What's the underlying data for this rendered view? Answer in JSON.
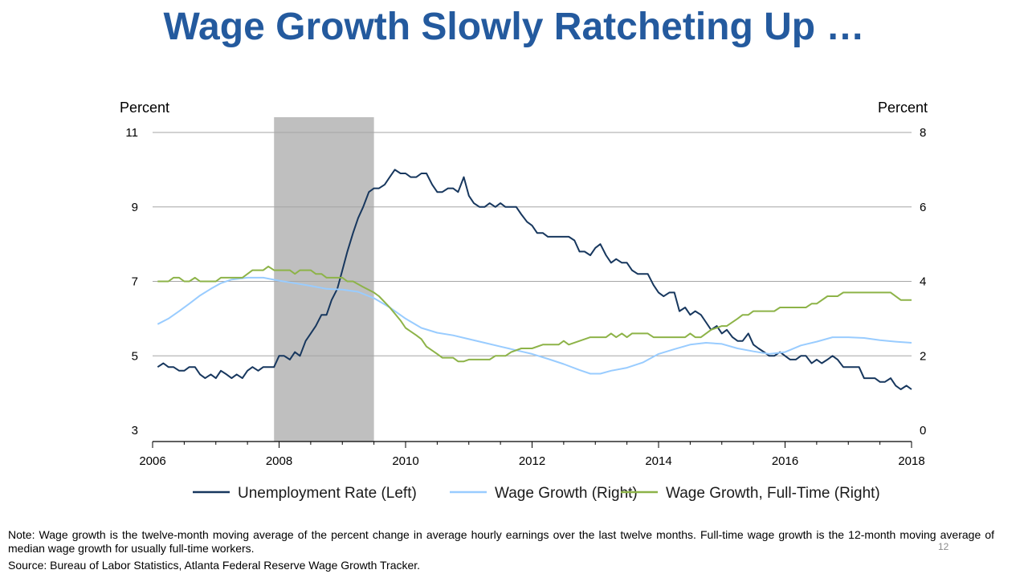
{
  "slide": {
    "title": "Wage Growth Slowly Ratcheting Up …",
    "note": "Note: Wage growth is the twelve-month moving average of the percent change in average hourly earnings over the last twelve months. Full-time wage growth is the 12-month moving average of median wage growth for usually full-time workers.",
    "source": "Source: Bureau of Labor Statistics, Atlanta Federal Reserve Wage Growth Tracker.",
    "page_number": "12"
  },
  "chart_data": {
    "type": "line",
    "title": "",
    "left_axis_label": "Percent",
    "right_axis_label": "Percent",
    "xlim": [
      2006,
      2018
    ],
    "left_ylim": [
      3,
      11
    ],
    "right_ylim": [
      0,
      8
    ],
    "x_ticks": [
      "2006",
      "2008",
      "2010",
      "2012",
      "2014",
      "2016",
      "2018"
    ],
    "left_ticks": [
      "11",
      "9",
      "7",
      "5",
      "3"
    ],
    "right_ticks": [
      "8",
      "6",
      "4",
      "2",
      "0"
    ],
    "grid": true,
    "legend_position": "bottom",
    "recession_band": [
      2007.92,
      2009.5
    ],
    "recession_color": "#bfbfbf",
    "series": [
      {
        "name": "Unemployment Rate (Left)",
        "axis": "left",
        "color": "#17375e",
        "points": [
          [
            2006.08,
            4.7
          ],
          [
            2006.17,
            4.8
          ],
          [
            2006.25,
            4.7
          ],
          [
            2006.33,
            4.7
          ],
          [
            2006.42,
            4.6
          ],
          [
            2006.5,
            4.6
          ],
          [
            2006.58,
            4.7
          ],
          [
            2006.67,
            4.7
          ],
          [
            2006.75,
            4.5
          ],
          [
            2006.83,
            4.4
          ],
          [
            2006.92,
            4.5
          ],
          [
            2007.0,
            4.4
          ],
          [
            2007.08,
            4.6
          ],
          [
            2007.17,
            4.5
          ],
          [
            2007.25,
            4.4
          ],
          [
            2007.33,
            4.5
          ],
          [
            2007.42,
            4.4
          ],
          [
            2007.5,
            4.6
          ],
          [
            2007.58,
            4.7
          ],
          [
            2007.67,
            4.6
          ],
          [
            2007.75,
            4.7
          ],
          [
            2007.83,
            4.7
          ],
          [
            2007.92,
            4.7
          ],
          [
            2008.0,
            5.0
          ],
          [
            2008.08,
            5.0
          ],
          [
            2008.17,
            4.9
          ],
          [
            2008.25,
            5.1
          ],
          [
            2008.33,
            5.0
          ],
          [
            2008.42,
            5.4
          ],
          [
            2008.5,
            5.6
          ],
          [
            2008.58,
            5.8
          ],
          [
            2008.67,
            6.1
          ],
          [
            2008.75,
            6.1
          ],
          [
            2008.83,
            6.5
          ],
          [
            2008.92,
            6.8
          ],
          [
            2009.0,
            7.3
          ],
          [
            2009.08,
            7.8
          ],
          [
            2009.17,
            8.3
          ],
          [
            2009.25,
            8.7
          ],
          [
            2009.33,
            9.0
          ],
          [
            2009.42,
            9.4
          ],
          [
            2009.5,
            9.5
          ],
          [
            2009.58,
            9.5
          ],
          [
            2009.67,
            9.6
          ],
          [
            2009.75,
            9.8
          ],
          [
            2009.83,
            10.0
          ],
          [
            2009.92,
            9.9
          ],
          [
            2010.0,
            9.9
          ],
          [
            2010.08,
            9.8
          ],
          [
            2010.17,
            9.8
          ],
          [
            2010.25,
            9.9
          ],
          [
            2010.33,
            9.9
          ],
          [
            2010.42,
            9.6
          ],
          [
            2010.5,
            9.4
          ],
          [
            2010.58,
            9.4
          ],
          [
            2010.67,
            9.5
          ],
          [
            2010.75,
            9.5
          ],
          [
            2010.83,
            9.4
          ],
          [
            2010.92,
            9.8
          ],
          [
            2011.0,
            9.3
          ],
          [
            2011.08,
            9.1
          ],
          [
            2011.17,
            9.0
          ],
          [
            2011.25,
            9.0
          ],
          [
            2011.33,
            9.1
          ],
          [
            2011.42,
            9.0
          ],
          [
            2011.5,
            9.1
          ],
          [
            2011.58,
            9.0
          ],
          [
            2011.67,
            9.0
          ],
          [
            2011.75,
            9.0
          ],
          [
            2011.83,
            8.8
          ],
          [
            2011.92,
            8.6
          ],
          [
            2012.0,
            8.5
          ],
          [
            2012.08,
            8.3
          ],
          [
            2012.17,
            8.3
          ],
          [
            2012.25,
            8.2
          ],
          [
            2012.33,
            8.2
          ],
          [
            2012.42,
            8.2
          ],
          [
            2012.5,
            8.2
          ],
          [
            2012.58,
            8.2
          ],
          [
            2012.67,
            8.1
          ],
          [
            2012.75,
            7.8
          ],
          [
            2012.83,
            7.8
          ],
          [
            2012.92,
            7.7
          ],
          [
            2013.0,
            7.9
          ],
          [
            2013.08,
            8.0
          ],
          [
            2013.17,
            7.7
          ],
          [
            2013.25,
            7.5
          ],
          [
            2013.33,
            7.6
          ],
          [
            2013.42,
            7.5
          ],
          [
            2013.5,
            7.5
          ],
          [
            2013.58,
            7.3
          ],
          [
            2013.67,
            7.2
          ],
          [
            2013.75,
            7.2
          ],
          [
            2013.83,
            7.2
          ],
          [
            2013.92,
            6.9
          ],
          [
            2014.0,
            6.7
          ],
          [
            2014.08,
            6.6
          ],
          [
            2014.17,
            6.7
          ],
          [
            2014.25,
            6.7
          ],
          [
            2014.33,
            6.2
          ],
          [
            2014.42,
            6.3
          ],
          [
            2014.5,
            6.1
          ],
          [
            2014.58,
            6.2
          ],
          [
            2014.67,
            6.1
          ],
          [
            2014.75,
            5.9
          ],
          [
            2014.83,
            5.7
          ],
          [
            2014.92,
            5.8
          ],
          [
            2015.0,
            5.6
          ],
          [
            2015.08,
            5.7
          ],
          [
            2015.17,
            5.5
          ],
          [
            2015.25,
            5.4
          ],
          [
            2015.33,
            5.4
          ],
          [
            2015.42,
            5.6
          ],
          [
            2015.5,
            5.3
          ],
          [
            2015.58,
            5.2
          ],
          [
            2015.67,
            5.1
          ],
          [
            2015.75,
            5.0
          ],
          [
            2015.83,
            5.0
          ],
          [
            2015.92,
            5.1
          ],
          [
            2016.0,
            5.0
          ],
          [
            2016.08,
            4.9
          ],
          [
            2016.17,
            4.9
          ],
          [
            2016.25,
            5.0
          ],
          [
            2016.33,
            5.0
          ],
          [
            2016.42,
            4.8
          ],
          [
            2016.5,
            4.9
          ],
          [
            2016.58,
            4.8
          ],
          [
            2016.67,
            4.9
          ],
          [
            2016.75,
            5.0
          ],
          [
            2016.83,
            4.9
          ],
          [
            2016.92,
            4.7
          ],
          [
            2017.0,
            4.7
          ],
          [
            2017.08,
            4.7
          ],
          [
            2017.17,
            4.7
          ],
          [
            2017.25,
            4.4
          ],
          [
            2017.33,
            4.4
          ],
          [
            2017.42,
            4.4
          ],
          [
            2017.5,
            4.3
          ],
          [
            2017.58,
            4.3
          ],
          [
            2017.67,
            4.4
          ],
          [
            2017.75,
            4.2
          ],
          [
            2017.83,
            4.1
          ],
          [
            2017.92,
            4.2
          ],
          [
            2018.0,
            4.1
          ]
        ]
      },
      {
        "name": "Wage Growth (Right)",
        "axis": "right",
        "color": "#99ccff",
        "points": [
          [
            2006.08,
            2.85
          ],
          [
            2006.25,
            3.0
          ],
          [
            2006.42,
            3.2
          ],
          [
            2006.58,
            3.4
          ],
          [
            2006.75,
            3.62
          ],
          [
            2006.92,
            3.8
          ],
          [
            2007.08,
            3.95
          ],
          [
            2007.25,
            4.05
          ],
          [
            2007.5,
            4.1
          ],
          [
            2007.75,
            4.1
          ],
          [
            2008.0,
            4.02
          ],
          [
            2008.25,
            3.95
          ],
          [
            2008.5,
            3.88
          ],
          [
            2008.75,
            3.8
          ],
          [
            2009.0,
            3.78
          ],
          [
            2009.25,
            3.72
          ],
          [
            2009.5,
            3.55
          ],
          [
            2009.75,
            3.3
          ],
          [
            2010.0,
            3.0
          ],
          [
            2010.25,
            2.75
          ],
          [
            2010.5,
            2.62
          ],
          [
            2010.75,
            2.55
          ],
          [
            2011.0,
            2.45
          ],
          [
            2011.25,
            2.35
          ],
          [
            2011.5,
            2.25
          ],
          [
            2011.75,
            2.15
          ],
          [
            2012.0,
            2.05
          ],
          [
            2012.25,
            1.92
          ],
          [
            2012.5,
            1.78
          ],
          [
            2012.75,
            1.62
          ],
          [
            2012.92,
            1.52
          ],
          [
            2013.08,
            1.52
          ],
          [
            2013.25,
            1.6
          ],
          [
            2013.5,
            1.68
          ],
          [
            2013.75,
            1.82
          ],
          [
            2014.0,
            2.05
          ],
          [
            2014.25,
            2.18
          ],
          [
            2014.5,
            2.3
          ],
          [
            2014.75,
            2.35
          ],
          [
            2015.0,
            2.32
          ],
          [
            2015.25,
            2.2
          ],
          [
            2015.5,
            2.12
          ],
          [
            2015.75,
            2.05
          ],
          [
            2016.0,
            2.1
          ],
          [
            2016.25,
            2.28
          ],
          [
            2016.5,
            2.38
          ],
          [
            2016.75,
            2.5
          ],
          [
            2017.0,
            2.5
          ],
          [
            2017.25,
            2.48
          ],
          [
            2017.5,
            2.42
          ],
          [
            2017.75,
            2.38
          ],
          [
            2018.0,
            2.35
          ]
        ]
      },
      {
        "name": "Wage Growth, Full-Time (Right)",
        "axis": "right",
        "color": "#8db348",
        "points": [
          [
            2006.08,
            4.0
          ],
          [
            2006.25,
            4.0
          ],
          [
            2006.33,
            4.1
          ],
          [
            2006.42,
            4.1
          ],
          [
            2006.5,
            4.0
          ],
          [
            2006.58,
            4.0
          ],
          [
            2006.67,
            4.1
          ],
          [
            2006.75,
            4.0
          ],
          [
            2007.0,
            4.0
          ],
          [
            2007.08,
            4.1
          ],
          [
            2007.42,
            4.1
          ],
          [
            2007.58,
            4.3
          ],
          [
            2007.75,
            4.3
          ],
          [
            2007.83,
            4.4
          ],
          [
            2007.92,
            4.3
          ],
          [
            2008.17,
            4.3
          ],
          [
            2008.25,
            4.2
          ],
          [
            2008.33,
            4.3
          ],
          [
            2008.5,
            4.3
          ],
          [
            2008.58,
            4.2
          ],
          [
            2008.67,
            4.2
          ],
          [
            2008.75,
            4.1
          ],
          [
            2009.0,
            4.1
          ],
          [
            2009.08,
            4.0
          ],
          [
            2009.17,
            4.0
          ],
          [
            2009.33,
            3.85
          ],
          [
            2009.5,
            3.7
          ],
          [
            2009.58,
            3.6
          ],
          [
            2009.75,
            3.3
          ],
          [
            2009.92,
            2.95
          ],
          [
            2010.0,
            2.75
          ],
          [
            2010.17,
            2.55
          ],
          [
            2010.25,
            2.45
          ],
          [
            2010.33,
            2.25
          ],
          [
            2010.5,
            2.05
          ],
          [
            2010.58,
            1.95
          ],
          [
            2010.75,
            1.95
          ],
          [
            2010.83,
            1.85
          ],
          [
            2010.92,
            1.85
          ],
          [
            2011.0,
            1.9
          ],
          [
            2011.17,
            1.9
          ],
          [
            2011.33,
            1.9
          ],
          [
            2011.42,
            2.0
          ],
          [
            2011.58,
            2.0
          ],
          [
            2011.67,
            2.1
          ],
          [
            2011.83,
            2.2
          ],
          [
            2012.0,
            2.2
          ],
          [
            2012.17,
            2.3
          ],
          [
            2012.42,
            2.3
          ],
          [
            2012.5,
            2.4
          ],
          [
            2012.58,
            2.3
          ],
          [
            2012.75,
            2.4
          ],
          [
            2012.92,
            2.5
          ],
          [
            2013.17,
            2.5
          ],
          [
            2013.25,
            2.6
          ],
          [
            2013.33,
            2.5
          ],
          [
            2013.42,
            2.6
          ],
          [
            2013.5,
            2.5
          ],
          [
            2013.58,
            2.6
          ],
          [
            2013.83,
            2.6
          ],
          [
            2013.92,
            2.5
          ],
          [
            2014.42,
            2.5
          ],
          [
            2014.5,
            2.6
          ],
          [
            2014.58,
            2.5
          ],
          [
            2014.67,
            2.5
          ],
          [
            2014.83,
            2.7
          ],
          [
            2015.0,
            2.8
          ],
          [
            2015.08,
            2.8
          ],
          [
            2015.25,
            3.0
          ],
          [
            2015.33,
            3.1
          ],
          [
            2015.42,
            3.1
          ],
          [
            2015.5,
            3.2
          ],
          [
            2015.75,
            3.2
          ],
          [
            2015.83,
            3.2
          ],
          [
            2015.92,
            3.3
          ],
          [
            2016.33,
            3.3
          ],
          [
            2016.42,
            3.4
          ],
          [
            2016.5,
            3.4
          ],
          [
            2016.67,
            3.6
          ],
          [
            2016.83,
            3.6
          ],
          [
            2016.92,
            3.7
          ],
          [
            2017.67,
            3.7
          ],
          [
            2017.83,
            3.5
          ],
          [
            2018.0,
            3.5
          ]
        ]
      }
    ]
  }
}
